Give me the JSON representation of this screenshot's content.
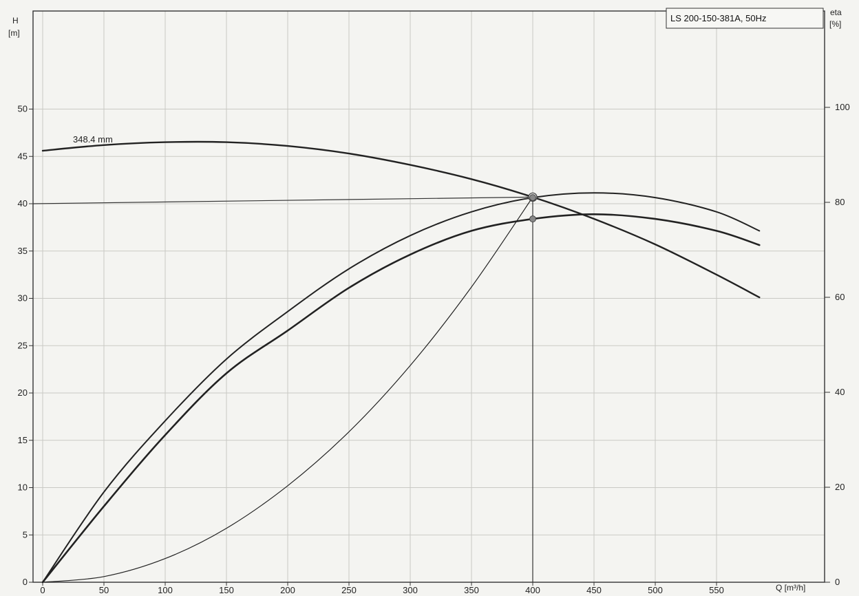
{
  "chart_data": {
    "type": "line",
    "title": "LS 200-150-381A, 50Hz",
    "xlabel": "Q [m³/h]",
    "ylabel_left": [
      "H",
      "[m]"
    ],
    "ylabel_right": [
      "eta",
      "[%]"
    ],
    "xlim": [
      0,
      600
    ],
    "ylim_left": [
      0,
      55
    ],
    "ylim_right": [
      0,
      110
    ],
    "grid": true,
    "x_ticks": [
      0,
      50,
      100,
      150,
      200,
      250,
      300,
      350,
      400,
      450,
      500,
      550
    ],
    "y_left_ticks": [
      0,
      5,
      10,
      15,
      20,
      25,
      30,
      35,
      40,
      45,
      50
    ],
    "y_right_ticks": [
      0,
      20,
      40,
      60,
      80,
      100
    ],
    "curve_label": "348.4 mm",
    "series": [
      {
        "axis": "left",
        "x": [
          0,
          50,
          100,
          150,
          200,
          250,
          300,
          350,
          400,
          450,
          500,
          550,
          585
        ],
        "values": [
          45.6,
          46.2,
          46.5,
          46.5,
          46.1,
          45.3,
          44.1,
          42.6,
          40.7,
          38.4,
          35.7,
          32.5,
          30.1
        ]
      },
      {
        "axis": "right",
        "x": [
          0,
          50,
          100,
          150,
          200,
          250,
          300,
          350,
          400,
          450,
          500,
          550,
          585
        ],
        "values": [
          0,
          19,
          34,
          47,
          57,
          66,
          73,
          78,
          81,
          82,
          81,
          78,
          74
        ]
      },
      {
        "axis": "right",
        "x": [
          0,
          50,
          100,
          150,
          200,
          250,
          300,
          350,
          400,
          450,
          500,
          550,
          585
        ],
        "values": [
          0,
          16,
          31,
          44,
          53,
          62,
          69,
          74,
          76.5,
          77.5,
          76.5,
          74,
          71
        ]
      },
      {
        "axis": "left",
        "x": [
          0,
          50,
          100,
          150,
          200,
          250,
          300,
          350,
          400
        ],
        "values": [
          0,
          0.6,
          2.5,
          5.7,
          10.2,
          15.9,
          22.9,
          31.2,
          40.7
        ]
      }
    ],
    "operating_point": {
      "Q": 400,
      "H": 40.7,
      "eta_1": 81,
      "eta_2": 76.5
    },
    "reference_lines": [
      {
        "type": "horizontal",
        "axis": "left",
        "y": 40
      },
      {
        "type": "vertical",
        "x": 400
      }
    ],
    "colors": {
      "curve": "#222222",
      "grid": "#c9c9c4",
      "paper": "#f4f4f1"
    }
  }
}
